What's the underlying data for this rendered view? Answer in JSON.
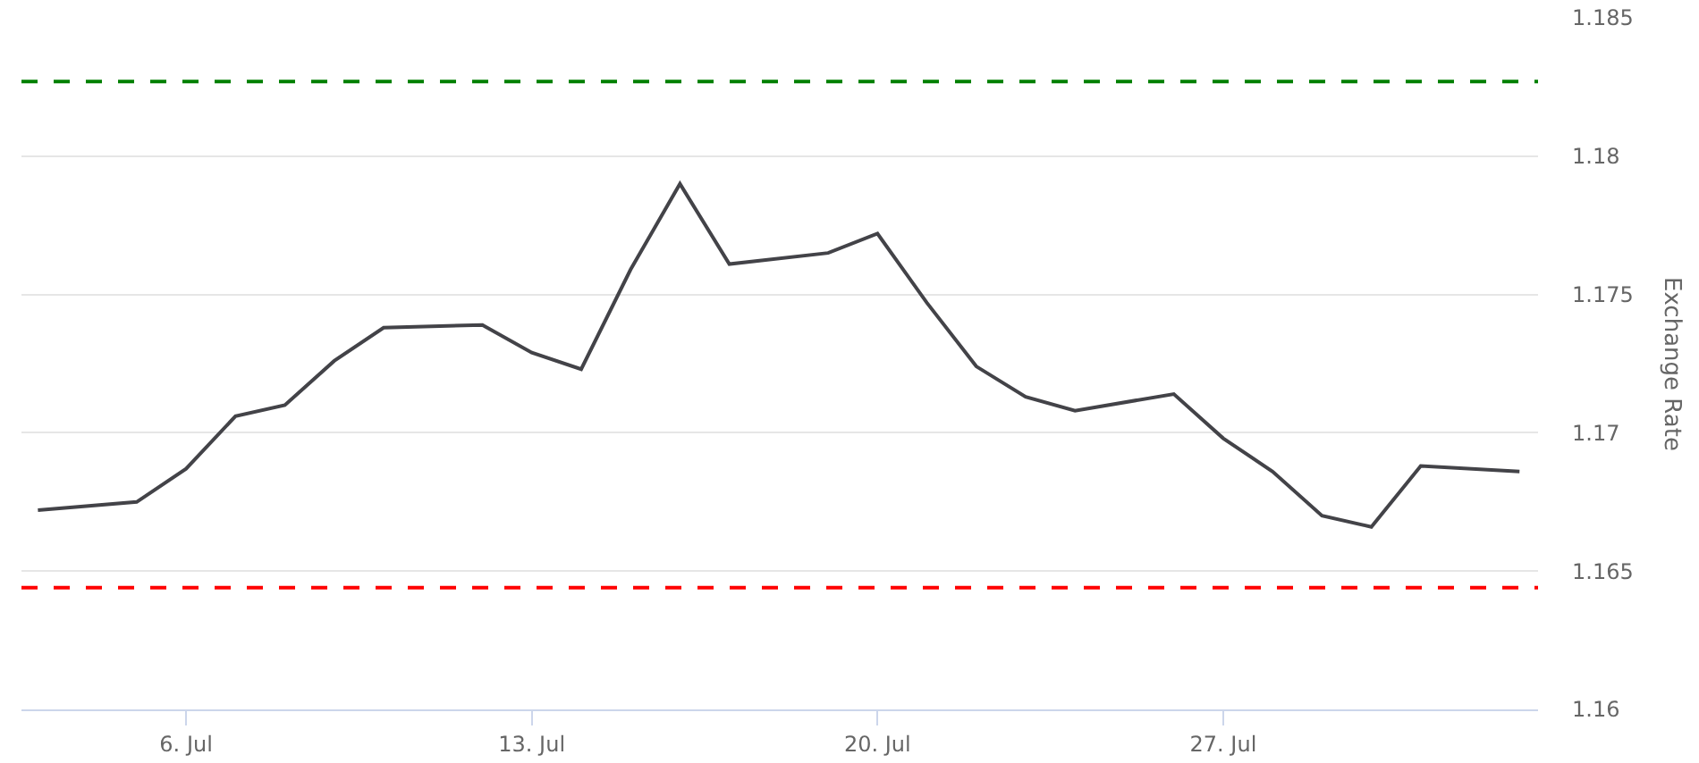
{
  "chart_data": {
    "type": "line",
    "ylabel": "Exchange Rate",
    "x": [
      "--07-03",
      "--07-05",
      "--07-06",
      "--07-07",
      "--07-08",
      "--07-09",
      "--07-10",
      "--07-12",
      "--07-13",
      "--07-14",
      "--07-15",
      "--07-16",
      "--07-17",
      "--07-19",
      "--07-20",
      "--07-21",
      "--07-22",
      "--07-23",
      "--07-24",
      "--07-26",
      "--07-27",
      "--07-28",
      "--07-29",
      "--07-30",
      "--07-31",
      "--08-02"
    ],
    "series": [
      {
        "color": "#434348",
        "values": [
          1.1672,
          1.1675,
          1.1687,
          1.1706,
          1.171,
          1.1726,
          1.1738,
          1.1739,
          1.1729,
          1.1723,
          1.1759,
          1.179,
          1.1761,
          1.1765,
          1.1772,
          1.1747,
          1.1724,
          1.1713,
          1.1708,
          1.1714,
          1.1698,
          1.1686,
          1.167,
          1.1666,
          1.1688,
          1.1686
        ]
      }
    ],
    "xlim": [
      "--07-02T16:00",
      "--08-02T09:00"
    ],
    "xticks": [
      {
        "value": "--07-06",
        "label": "6. Jul"
      },
      {
        "value": "--07-13",
        "label": "13. Jul"
      },
      {
        "value": "--07-20",
        "label": "20. Jul"
      },
      {
        "value": "--07-27",
        "label": "27. Jul"
      }
    ],
    "ylim": [
      1.16,
      1.185
    ],
    "yticks": [
      1.16,
      1.165,
      1.17,
      1.175,
      1.18,
      1.185
    ],
    "ref_lines": [
      {
        "axis": "y",
        "value": 1.1827,
        "label": null,
        "color": "#008000",
        "line_style": "dashed"
      },
      {
        "axis": "y",
        "value": 1.1644,
        "label": null,
        "color": "#ff0000",
        "line_style": "dashed"
      }
    ],
    "grid": "y",
    "marker": "none",
    "line_style": "solid"
  }
}
